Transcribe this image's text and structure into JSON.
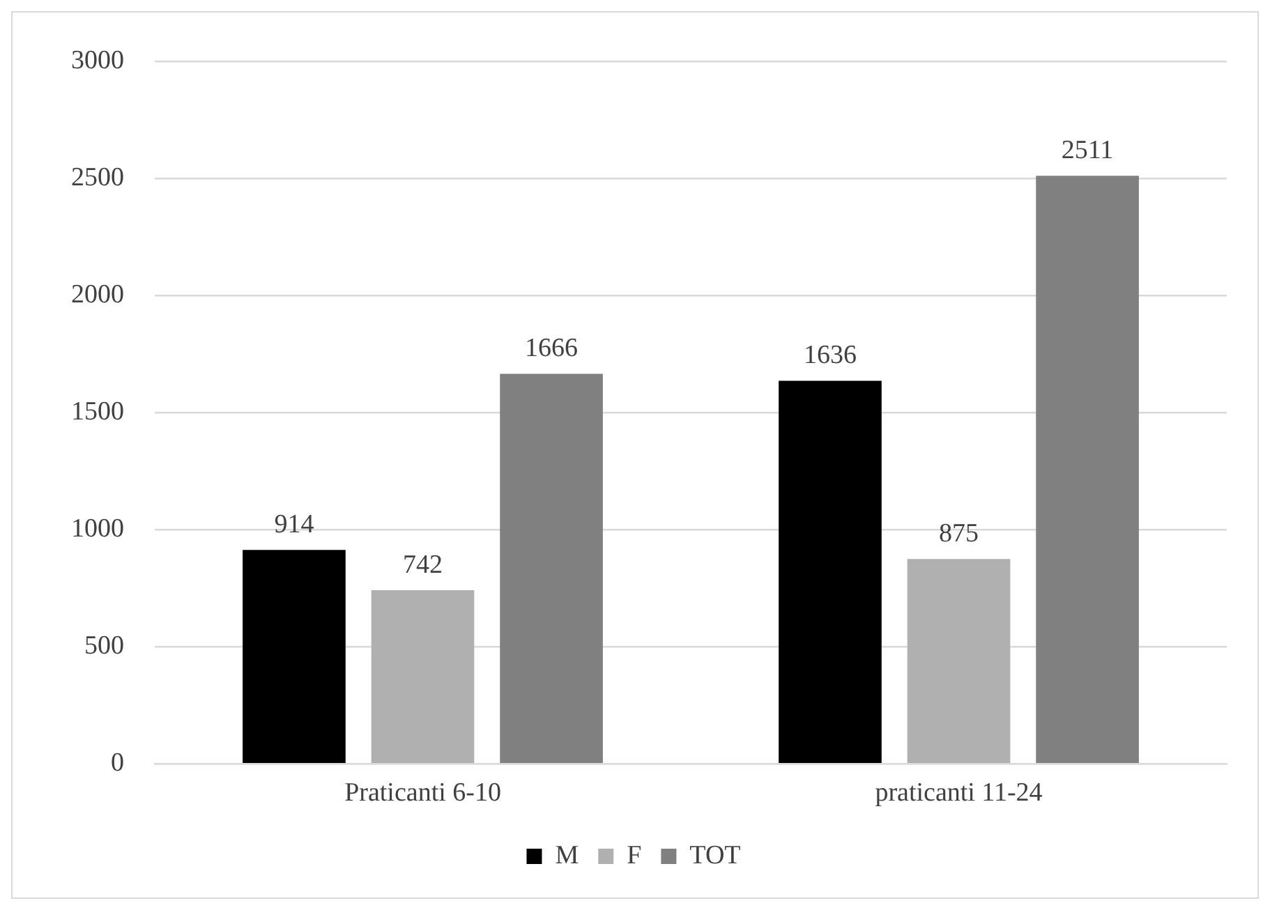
{
  "chart_data": {
    "type": "bar",
    "categories": [
      "Praticanti 6-10",
      "praticanti 11-24"
    ],
    "series": [
      {
        "name": "M",
        "color": "#000000",
        "values": [
          914,
          1636
        ]
      },
      {
        "name": "F",
        "color": "#b0b0b0",
        "values": [
          742,
          875
        ]
      },
      {
        "name": "TOT",
        "color": "#808080",
        "values": [
          1666,
          2511
        ]
      }
    ],
    "ylim": [
      0,
      3000
    ],
    "yticks": [
      0,
      500,
      1000,
      1500,
      2000,
      2500,
      3000
    ],
    "grid": "y",
    "legend": "bottom",
    "data_labels": true
  }
}
